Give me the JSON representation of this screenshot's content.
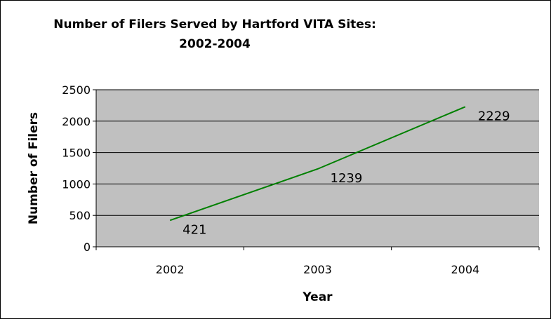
{
  "chart_data": {
    "type": "line",
    "title_line1": "Number of Filers Served by Hartford VITA Sites:",
    "title_line2": "2002-2004",
    "xlabel": "Year",
    "ylabel": "Number of Filers",
    "categories": [
      "2002",
      "2003",
      "2004"
    ],
    "values": [
      421,
      1239,
      2229
    ],
    "data_labels": [
      "421",
      "1239",
      "2229"
    ],
    "ylim": [
      0,
      2500
    ],
    "yticks": [
      0,
      500,
      1000,
      1500,
      2000,
      2500
    ],
    "ytick_labels": [
      "0",
      "500",
      "1000",
      "1500",
      "2000",
      "2500"
    ],
    "grid": true,
    "legend": "none",
    "colors": {
      "line": "#008000",
      "plot_background": "#c0c0c0",
      "gridline": "#000000"
    }
  }
}
